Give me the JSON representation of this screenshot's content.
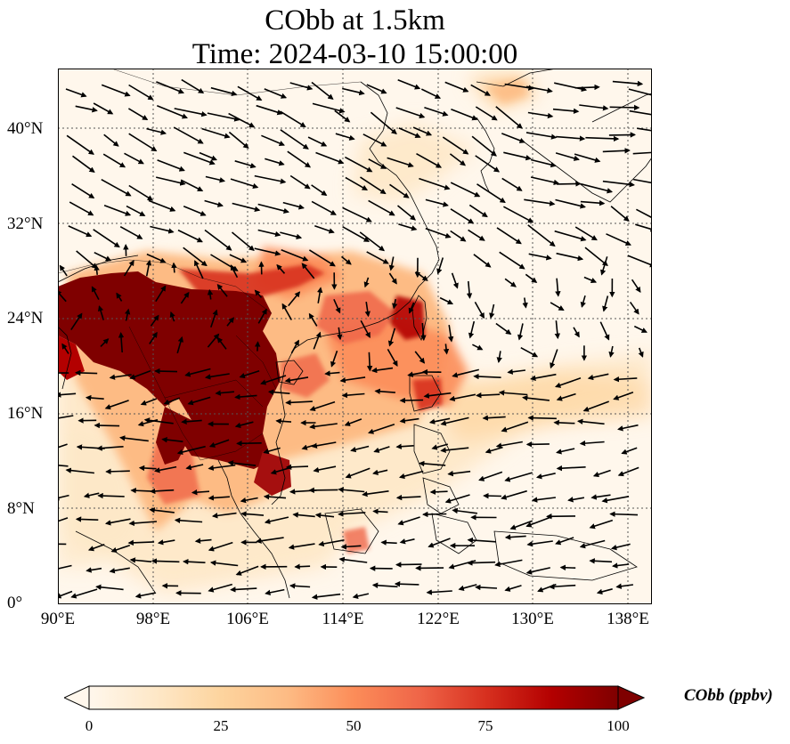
{
  "title": {
    "line1": "CObb at 1.5km",
    "line2": "Time: 2024-03-10 15:00:00"
  },
  "map": {
    "variable": "CObb",
    "level": "1.5km",
    "time": "2024-03-10 15:00:00",
    "lon_range": [
      90,
      140
    ],
    "lat_range": [
      0,
      45
    ],
    "x_ticks": [
      "90°E",
      "98°E",
      "106°E",
      "114°E",
      "122°E",
      "130°E",
      "138°E"
    ],
    "y_ticks": [
      "0°",
      "8°N",
      "16°N",
      "24°N",
      "32°N",
      "40°N"
    ],
    "gridlines": "dotted",
    "overlay": "wind vectors",
    "colormap": "OrRd"
  },
  "colorbar": {
    "label": "CObb (ppbv)",
    "ticks": [
      "0",
      "25",
      "50",
      "75",
      "100"
    ],
    "range": [
      0,
      100
    ],
    "extend": "both",
    "colors": [
      "#fff7ec",
      "#fee8c8",
      "#fdd49e",
      "#fdbb84",
      "#fc8d59",
      "#ef6548",
      "#d7301f",
      "#b30000",
      "#7f0000"
    ]
  }
}
